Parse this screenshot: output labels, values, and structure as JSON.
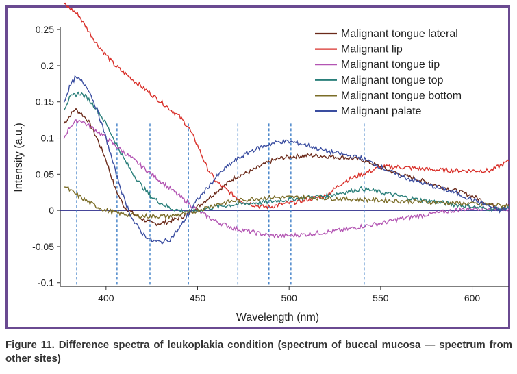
{
  "caption": "Figure 11. Difference spectra of leukoplakia condition (spectrum of buccal mucosa — spectrum from other sites)",
  "chart_data": {
    "type": "line",
    "title": "",
    "xlabel": "Wavelength (nm)",
    "ylabel": "Intensity (a.u.)",
    "xlim": [
      375,
      620
    ],
    "ylim": [
      -0.105,
      0.27
    ],
    "x_ticks": [
      400,
      450,
      500,
      550,
      600
    ],
    "x_tick_labels": [
      "400",
      "450",
      "500",
      "550",
      "600"
    ],
    "y_ticks": [
      -0.1,
      -0.05,
      0,
      0.05,
      0.1,
      0.15,
      0.2,
      0.25
    ],
    "y_tick_labels": [
      "-0.1",
      "-0.05",
      "0",
      "0.05",
      "0.1",
      "0.15",
      "0.2",
      "0.25"
    ],
    "grid": false,
    "legend_position": "top-right",
    "zero_line_color": "#2c2c8c",
    "vertical_markers": [
      384,
      406,
      424,
      445,
      472,
      489,
      501,
      541
    ],
    "series": [
      {
        "name": "Malignant tongue lateral",
        "color": "#6b2a1a",
        "x": [
          377,
          380,
          383,
          386,
          390,
          395,
          400,
          405,
          410,
          415,
          420,
          425,
          430,
          435,
          440,
          445,
          450,
          455,
          460,
          465,
          470,
          475,
          480,
          485,
          490,
          495,
          500,
          505,
          510,
          520,
          530,
          540,
          550,
          560,
          570,
          580,
          590,
          600,
          610,
          615,
          620
        ],
        "y": [
          0.12,
          0.13,
          0.14,
          0.135,
          0.125,
          0.1,
          0.07,
          0.03,
          0.005,
          -0.005,
          -0.012,
          -0.018,
          -0.018,
          -0.015,
          -0.01,
          -0.005,
          0.005,
          0.015,
          0.025,
          0.035,
          0.045,
          0.05,
          0.055,
          0.062,
          0.068,
          0.072,
          0.074,
          0.075,
          0.076,
          0.075,
          0.073,
          0.07,
          0.06,
          0.05,
          0.043,
          0.035,
          0.028,
          0.02,
          0.008,
          0.002,
          0.008
        ]
      },
      {
        "name": "Malignant lip",
        "color": "#d9312b",
        "x": [
          377,
          380,
          385,
          390,
          395,
          400,
          405,
          410,
          415,
          420,
          425,
          430,
          435,
          440,
          445,
          450,
          455,
          460,
          465,
          470,
          475,
          480,
          485,
          490,
          495,
          500,
          505,
          510,
          515,
          520,
          525,
          530,
          540,
          550,
          560,
          570,
          580,
          590,
          600,
          610,
          620
        ],
        "y": [
          0.285,
          0.28,
          0.27,
          0.25,
          0.23,
          0.215,
          0.2,
          0.19,
          0.18,
          0.17,
          0.16,
          0.15,
          0.14,
          0.13,
          0.115,
          0.09,
          0.06,
          0.04,
          0.03,
          0.02,
          0.012,
          0.008,
          0.005,
          0.005,
          0.008,
          0.01,
          0.012,
          0.015,
          0.018,
          0.02,
          0.03,
          0.04,
          0.05,
          0.06,
          0.06,
          0.058,
          0.056,
          0.055,
          0.055,
          0.055,
          0.068
        ]
      },
      {
        "name": "Malignant tongue tip",
        "color": "#b355b3",
        "x": [
          377,
          380,
          383,
          386,
          390,
          395,
          400,
          405,
          410,
          415,
          420,
          425,
          430,
          435,
          440,
          445,
          450,
          455,
          460,
          465,
          470,
          480,
          490,
          500,
          510,
          520,
          530,
          540,
          550,
          560,
          570,
          580,
          590,
          600,
          610,
          620
        ],
        "y": [
          0.1,
          0.115,
          0.122,
          0.125,
          0.118,
          0.11,
          0.1,
          0.09,
          0.08,
          0.07,
          0.06,
          0.05,
          0.04,
          0.03,
          0.02,
          0.01,
          0.0,
          -0.008,
          -0.015,
          -0.02,
          -0.025,
          -0.03,
          -0.035,
          -0.035,
          -0.033,
          -0.03,
          -0.027,
          -0.022,
          -0.018,
          -0.012,
          -0.008,
          -0.004,
          0.0,
          0.003,
          0.003,
          0.002
        ]
      },
      {
        "name": "Malignant tongue top",
        "color": "#2a7f7a",
        "x": [
          377,
          380,
          383,
          386,
          390,
          395,
          400,
          405,
          410,
          415,
          420,
          425,
          430,
          435,
          440,
          445,
          450,
          460,
          470,
          480,
          490,
          500,
          510,
          520,
          530,
          540,
          550,
          560,
          570,
          580,
          590,
          600,
          610,
          620
        ],
        "y": [
          0.14,
          0.155,
          0.16,
          0.162,
          0.155,
          0.14,
          0.12,
          0.095,
          0.07,
          0.05,
          0.032,
          0.018,
          0.01,
          0.003,
          0.0,
          -0.002,
          0.0,
          0.005,
          0.008,
          0.01,
          0.012,
          0.015,
          0.018,
          0.02,
          0.025,
          0.03,
          0.025,
          0.02,
          0.015,
          0.012,
          0.008,
          0.005,
          0.002,
          0.003
        ]
      },
      {
        "name": "Malignant tongue bottom",
        "color": "#7b6d28",
        "x": [
          377,
          380,
          385,
          390,
          395,
          400,
          405,
          410,
          415,
          420,
          425,
          430,
          435,
          440,
          445,
          450,
          460,
          470,
          480,
          490,
          500,
          510,
          520,
          530,
          540,
          550,
          560,
          570,
          580,
          590,
          600,
          610,
          620
        ],
        "y": [
          0.035,
          0.028,
          0.02,
          0.012,
          0.005,
          0.0,
          -0.003,
          -0.005,
          -0.007,
          -0.008,
          -0.008,
          -0.008,
          -0.008,
          -0.006,
          -0.004,
          0.0,
          0.008,
          0.013,
          0.016,
          0.018,
          0.018,
          0.018,
          0.017,
          0.016,
          0.015,
          0.014,
          0.013,
          0.012,
          0.011,
          0.01,
          0.009,
          0.008,
          0.006
        ]
      },
      {
        "name": "Malignant palate",
        "color": "#3a4da0",
        "x": [
          377,
          380,
          383,
          386,
          390,
          395,
          400,
          405,
          410,
          415,
          420,
          425,
          430,
          435,
          440,
          445,
          450,
          455,
          460,
          465,
          470,
          475,
          480,
          485,
          490,
          495,
          500,
          505,
          510,
          520,
          530,
          540,
          550,
          560,
          570,
          580,
          590,
          600,
          610,
          615,
          620
        ],
        "y": [
          0.15,
          0.17,
          0.183,
          0.18,
          0.17,
          0.14,
          0.1,
          0.055,
          0.015,
          -0.015,
          -0.032,
          -0.042,
          -0.044,
          -0.04,
          -0.025,
          -0.005,
          0.015,
          0.03,
          0.045,
          0.058,
          0.068,
          0.076,
          0.083,
          0.088,
          0.092,
          0.095,
          0.095,
          0.093,
          0.09,
          0.082,
          0.077,
          0.072,
          0.06,
          0.048,
          0.04,
          0.032,
          0.025,
          0.015,
          0.005,
          0.0,
          0.003
        ]
      }
    ]
  }
}
